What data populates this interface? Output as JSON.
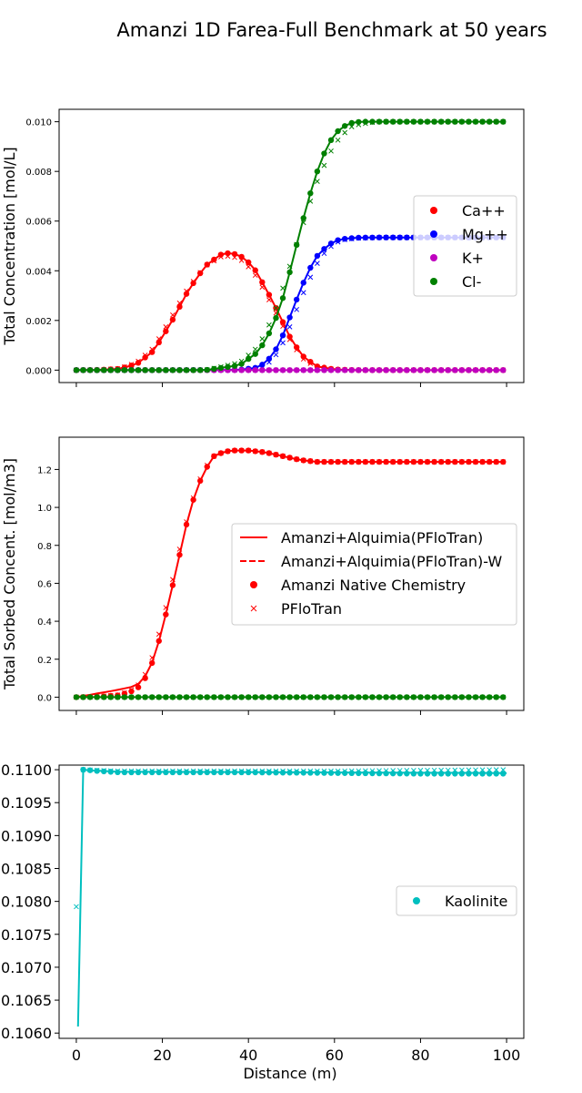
{
  "figure": {
    "title": "Amanzi 1D Farea-Full Benchmark at 50 years",
    "xlabel": "Distance (m)"
  },
  "colors": {
    "Ca++": "#ff0000",
    "Mg++": "#0000ff",
    "K+": "#bf00bf",
    "Cl-": "#008000",
    "Kaolinite": "#00bfbf"
  },
  "chart_data": [
    {
      "type": "line",
      "panel": "top",
      "ylabel": "Total Concentration [mol/L]",
      "xlim": [
        -4,
        104
      ],
      "ylim": [
        -0.0005,
        0.0105
      ],
      "xticks": [
        0,
        20,
        40,
        60,
        80,
        100
      ],
      "yticks": [
        0.0,
        0.002,
        0.004,
        0.006,
        0.008,
        0.01
      ],
      "ytick_labels": [
        "0.000",
        "0.002",
        "0.004",
        "0.006",
        "0.008",
        "0.010"
      ],
      "legend": {
        "placement": "center-right",
        "entries": [
          "Ca++",
          "Mg++",
          "K+",
          "Cl-"
        ]
      },
      "series": [
        {
          "name": "Ca++",
          "x": [
            0,
            5,
            10,
            14,
            18,
            22,
            26,
            30,
            34,
            36,
            38,
            41,
            44,
            47,
            50,
            53,
            56,
            60,
            65,
            70,
            80,
            100
          ],
          "amanzi": [
            0.0,
            1e-05,
            5e-05,
            0.00024,
            0.00078,
            0.0019,
            0.0032,
            0.0042,
            0.0047,
            0.00471,
            0.00462,
            0.0042,
            0.0033,
            0.0023,
            0.0012,
            0.0005,
            0.00015,
            3e-05,
            0.0,
            0.0,
            0.0,
            0.0
          ],
          "pflotran": [
            0.0,
            1e-05,
            6e-05,
            0.0003,
            0.0009,
            0.0021,
            0.0033,
            0.0042,
            0.0046,
            0.00458,
            0.00448,
            0.004,
            0.0031,
            0.0021,
            0.0011,
            0.0004,
            0.00012,
            2e-05,
            0.0,
            0.0,
            0.0,
            0.0
          ]
        },
        {
          "name": "Mg++",
          "x": [
            0,
            20,
            38,
            42,
            44,
            46,
            48,
            50,
            52,
            54,
            56,
            58,
            60,
            62,
            65,
            70,
            80,
            100
          ],
          "amanzi": [
            0.0,
            0.0,
            1e-05,
            0.0001,
            0.0003,
            0.0007,
            0.0014,
            0.0023,
            0.0032,
            0.004,
            0.0046,
            0.00495,
            0.0052,
            0.00528,
            0.00533,
            0.00534,
            0.00534,
            0.00534
          ],
          "pflotran": [
            0.0,
            0.0,
            1e-05,
            7e-05,
            0.0002,
            0.0005,
            0.0011,
            0.0019,
            0.0028,
            0.0036,
            0.0043,
            0.0048,
            0.0051,
            0.00525,
            0.00531,
            0.00534,
            0.00534,
            0.00534
          ]
        },
        {
          "name": "K+",
          "x": [
            0,
            100
          ],
          "amanzi": [
            0.0,
            0.0
          ],
          "pflotran": [
            0.0,
            0.0
          ]
        },
        {
          "name": "Cl-",
          "x": [
            0,
            30,
            38,
            42,
            44,
            46,
            48,
            50,
            52,
            54,
            56,
            58,
            60,
            62,
            64,
            66,
            70,
            80,
            100
          ],
          "amanzi": [
            0.0,
            0.0,
            0.0002,
            0.0007,
            0.0012,
            0.0019,
            0.0029,
            0.0042,
            0.0056,
            0.0069,
            0.008,
            0.0089,
            0.0095,
            0.0098,
            0.00995,
            0.01,
            0.01,
            0.01,
            0.01
          ],
          "pflotran": [
            0.0,
            0.0,
            0.0003,
            0.0009,
            0.0015,
            0.0023,
            0.0033,
            0.0044,
            0.0055,
            0.0066,
            0.0076,
            0.0084,
            0.0091,
            0.0095,
            0.0098,
            0.0099,
            0.01,
            0.01,
            0.01
          ]
        }
      ]
    },
    {
      "type": "line",
      "panel": "middle",
      "ylabel": "Total Sorbed Concent. [mol/m3]",
      "xlim": [
        -4,
        104
      ],
      "ylim": [
        -0.07,
        1.37
      ],
      "xticks": [
        0,
        20,
        40,
        60,
        80,
        100
      ],
      "yticks": [
        0.0,
        0.2,
        0.4,
        0.6,
        0.8,
        1.0,
        1.2
      ],
      "ytick_labels": [
        "0.0",
        "0.2",
        "0.4",
        "0.6",
        "0.8",
        "1.0",
        "1.2"
      ],
      "legend": {
        "placement": "center-right",
        "entries": [
          "Amanzi+Alquimia(PFloTran)",
          "Amanzi+Alquimia(PFloTran)-W",
          "Amanzi Native Chemistry",
          "PFloTran"
        ]
      },
      "series": [
        {
          "name": "Ca++",
          "x": [
            0,
            5,
            10,
            14,
            16,
            18,
            20,
            22,
            24,
            26,
            28,
            30,
            32,
            34,
            36,
            40,
            44,
            48,
            52,
            56,
            60,
            80,
            100
          ],
          "amanzi": [
            0.0,
            0.002,
            0.01,
            0.04,
            0.1,
            0.2,
            0.36,
            0.55,
            0.75,
            0.95,
            1.1,
            1.2,
            1.27,
            1.29,
            1.3,
            1.3,
            1.29,
            1.27,
            1.25,
            1.24,
            1.24,
            1.24,
            1.24
          ],
          "pflotran": [
            0.0,
            0.003,
            0.012,
            0.05,
            0.12,
            0.23,
            0.4,
            0.58,
            0.78,
            0.96,
            1.11,
            1.21,
            1.27,
            1.29,
            1.3,
            1.3,
            1.29,
            1.27,
            1.25,
            1.24,
            1.24,
            1.24,
            1.24
          ],
          "line": [
            0.0,
            0.02,
            0.04,
            0.06,
            0.11,
            0.2,
            0.36,
            0.55,
            0.75,
            0.95,
            1.1,
            1.2,
            1.27,
            1.29,
            1.3,
            1.3,
            1.29,
            1.27,
            1.25,
            1.24,
            1.24,
            1.24,
            1.24
          ]
        },
        {
          "name": "Cl-",
          "x": [
            0,
            100
          ],
          "amanzi": [
            0.0,
            0.0
          ],
          "pflotran": [
            0.0,
            0.0
          ],
          "line": [
            0.0,
            0.0
          ]
        }
      ]
    },
    {
      "type": "line",
      "panel": "bottom",
      "xlim": [
        -4,
        104
      ],
      "ylim": [
        0.10592,
        0.11007
      ],
      "xticks": [
        0,
        20,
        40,
        60,
        80,
        100
      ],
      "xtick_labels": [
        "0",
        "20",
        "40",
        "60",
        "80",
        "100"
      ],
      "yticks": [
        0.106,
        0.1065,
        0.107,
        0.1075,
        0.108,
        0.1085,
        0.109,
        0.1095,
        0.11
      ],
      "ytick_labels": [
        "0.1060",
        "0.1065",
        "0.1070",
        "0.1075",
        "0.1080",
        "0.1085",
        "0.1090",
        "0.1095",
        "0.1100"
      ],
      "legend": {
        "placement": "center-right",
        "entries": [
          "Kaolinite"
        ]
      },
      "series": [
        {
          "name": "Kaolinite",
          "x": [
            0,
            1,
            2,
            5,
            10,
            20,
            40,
            60,
            80,
            100
          ],
          "amanzi": [
            0.11,
            0.11,
            0.11,
            0.10998,
            0.10996,
            0.10996,
            0.10996,
            0.10995,
            0.10994,
            0.10994
          ],
          "pflotran": [
            0.10792,
            0.11,
            0.11,
            0.10999,
            0.10998,
            0.10998,
            0.10998,
            0.10998,
            0.10999,
            0.11
          ],
          "line_x": [
            0.4,
            1.6,
            3,
            10,
            100
          ],
          "line": [
            0.1061,
            0.11,
            0.10999,
            0.10997,
            0.10995
          ]
        }
      ]
    }
  ]
}
